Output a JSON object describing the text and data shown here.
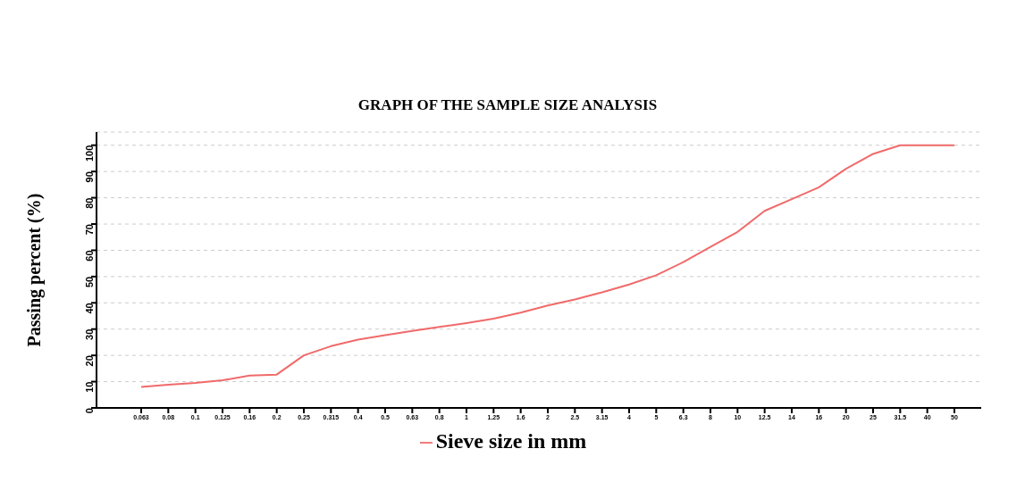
{
  "chart_data": {
    "type": "line",
    "title": "GRAPH OF THE SAMPLE SIZE ANALYSIS",
    "ylabel": "Passing percent (%)",
    "categories": [
      "0.063",
      "0.08",
      "0.1",
      "0.125",
      "0.16",
      "0.2",
      "0.25",
      "0.315",
      "0.4",
      "0.5",
      "0.63",
      "0.8",
      "1",
      "1.25",
      "1.6",
      "2",
      "2.5",
      "3.15",
      "4",
      "5",
      "6.3",
      "8",
      "10",
      "12.5",
      "14",
      "16",
      "20",
      "25",
      "31.5",
      "40",
      "50"
    ],
    "series": [
      {
        "name": "Sieve size in mm",
        "color": "#f06a6a",
        "values": [
          8,
          8.8,
          9.5,
          10.5,
          12.3,
          12.7,
          20,
          23.5,
          26,
          27.7,
          29.3,
          30.8,
          32.3,
          34,
          36.3,
          39,
          41.3,
          44,
          47,
          50.5,
          55.5,
          61.3,
          67,
          75,
          79.5,
          84,
          91,
          96.7,
          100,
          100,
          100
        ]
      }
    ],
    "ylim": [
      0,
      105
    ],
    "yticks": [
      0,
      10,
      20,
      30,
      40,
      50,
      60,
      70,
      80,
      90,
      100
    ],
    "grid": "y",
    "legend": "bottom",
    "marker": "none",
    "line_style": "solid"
  }
}
